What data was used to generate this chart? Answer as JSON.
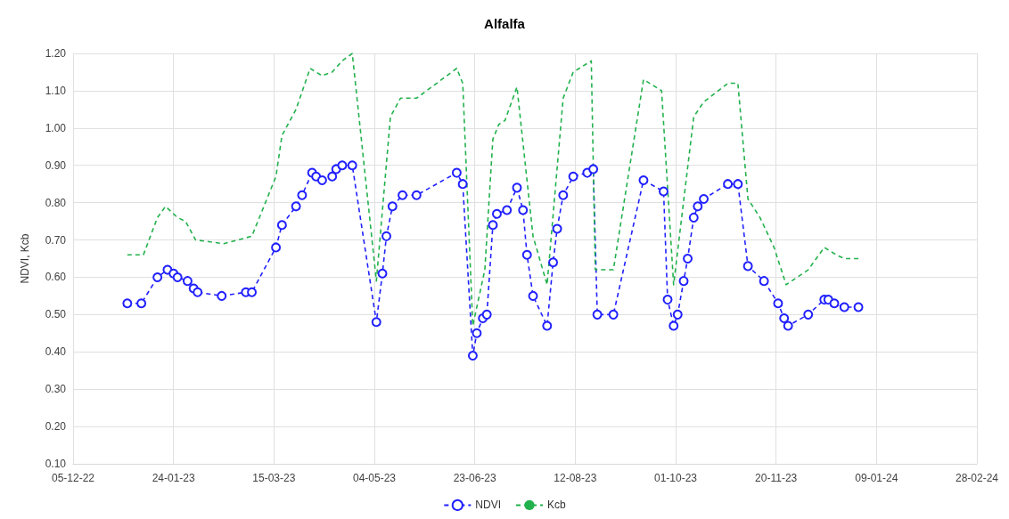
{
  "chart_data": {
    "type": "line",
    "title": "Alfalfa",
    "ylabel": "NDVI, Kcb",
    "xlim": [
      "2022-12-05",
      "2024-02-28"
    ],
    "xticks": [
      {
        "value": "2022-12-05",
        "label": "05-12-22"
      },
      {
        "value": "2023-01-24",
        "label": "24-01-23"
      },
      {
        "value": "2023-03-15",
        "label": "15-03-23"
      },
      {
        "value": "2023-05-04",
        "label": "04-05-23"
      },
      {
        "value": "2023-06-23",
        "label": "23-06-23"
      },
      {
        "value": "2023-08-12",
        "label": "12-08-23"
      },
      {
        "value": "2023-10-01",
        "label": "01-10-23"
      },
      {
        "value": "2023-11-20",
        "label": "20-11-23"
      },
      {
        "value": "2024-01-09",
        "label": "09-01-24"
      },
      {
        "value": "2024-02-28",
        "label": "28-02-24"
      }
    ],
    "ylim": [
      0.1,
      1.2
    ],
    "yticks": [
      {
        "value": 0.1,
        "label": "0.10"
      },
      {
        "value": 0.2,
        "label": "0.20"
      },
      {
        "value": 0.3,
        "label": "0.30"
      },
      {
        "value": 0.4,
        "label": "0.40"
      },
      {
        "value": 0.5,
        "label": "0.50"
      },
      {
        "value": 0.6,
        "label": "0.60"
      },
      {
        "value": 0.7,
        "label": "0.70"
      },
      {
        "value": 0.8,
        "label": "0.80"
      },
      {
        "value": 0.9,
        "label": "0.90"
      },
      {
        "value": 1.0,
        "label": "1.00"
      },
      {
        "value": 1.1,
        "label": "1.10"
      },
      {
        "value": 1.2,
        "label": "1.20"
      }
    ],
    "grid": true,
    "legend": "bottom",
    "line_style": "dashed",
    "series": [
      {
        "name": "NDVI",
        "color": "#2020ff",
        "marker": "circle",
        "x": [
          "2023-01-01",
          "2023-01-08",
          "2023-01-16",
          "2023-01-21",
          "2023-01-24",
          "2023-01-26",
          "2023-01-31",
          "2023-02-03",
          "2023-02-05",
          "2023-02-17",
          "2023-03-01",
          "2023-03-04",
          "2023-03-16",
          "2023-03-19",
          "2023-03-26",
          "2023-03-29",
          "2023-04-03",
          "2023-04-05",
          "2023-04-08",
          "2023-04-13",
          "2023-04-15",
          "2023-04-18",
          "2023-04-23",
          "2023-05-05",
          "2023-05-08",
          "2023-05-10",
          "2023-05-13",
          "2023-05-18",
          "2023-05-25",
          "2023-06-14",
          "2023-06-17",
          "2023-06-22",
          "2023-06-24",
          "2023-06-27",
          "2023-06-29",
          "2023-07-02",
          "2023-07-04",
          "2023-07-09",
          "2023-07-14",
          "2023-07-17",
          "2023-07-19",
          "2023-07-22",
          "2023-07-29",
          "2023-08-01",
          "2023-08-03",
          "2023-08-06",
          "2023-08-11",
          "2023-08-18",
          "2023-08-21",
          "2023-08-23",
          "2023-08-31",
          "2023-09-15",
          "2023-09-25",
          "2023-09-27",
          "2023-09-30",
          "2023-10-02",
          "2023-10-05",
          "2023-10-07",
          "2023-10-10",
          "2023-10-12",
          "2023-10-15",
          "2023-10-27",
          "2023-11-01",
          "2023-11-06",
          "2023-11-14",
          "2023-11-21",
          "2023-11-24",
          "2023-11-26",
          "2023-12-06",
          "2023-12-14",
          "2023-12-16",
          "2023-12-19",
          "2023-12-24",
          "2023-12-31"
        ],
        "values": [
          0.53,
          0.53,
          0.6,
          0.62,
          0.61,
          0.6,
          0.59,
          0.57,
          0.56,
          0.55,
          0.56,
          0.56,
          0.68,
          0.74,
          0.79,
          0.82,
          0.88,
          0.87,
          0.86,
          0.87,
          0.89,
          0.9,
          0.9,
          0.48,
          0.61,
          0.71,
          0.79,
          0.82,
          0.82,
          0.88,
          0.85,
          0.39,
          0.45,
          0.49,
          0.5,
          0.74,
          0.77,
          0.78,
          0.84,
          0.78,
          0.66,
          0.55,
          0.47,
          0.64,
          0.73,
          0.82,
          0.87,
          0.88,
          0.89,
          0.5,
          0.5,
          0.86,
          0.83,
          0.54,
          0.47,
          0.5,
          0.59,
          0.65,
          0.76,
          0.79,
          0.81,
          0.85,
          0.85,
          0.63,
          0.59,
          0.53,
          0.49,
          0.47,
          0.5,
          0.54,
          0.54,
          0.53,
          0.52,
          0.52
        ]
      },
      {
        "name": "Kcb",
        "color": "#22b14c",
        "marker": "none",
        "x": [
          "2023-01-01",
          "2023-01-09",
          "2023-01-16",
          "2023-01-20",
          "2023-01-26",
          "2023-01-30",
          "2023-02-04",
          "2023-02-18",
          "2023-03-04",
          "2023-03-16",
          "2023-03-19",
          "2023-03-26",
          "2023-04-02",
          "2023-04-08",
          "2023-04-13",
          "2023-04-18",
          "2023-04-23",
          "2023-05-05",
          "2023-05-12",
          "2023-05-17",
          "2023-05-25",
          "2023-06-14",
          "2023-06-17",
          "2023-06-22",
          "2023-06-28",
          "2023-07-02",
          "2023-07-05",
          "2023-07-08",
          "2023-07-14",
          "2023-07-22",
          "2023-07-29",
          "2023-08-06",
          "2023-08-11",
          "2023-08-20",
          "2023-08-22",
          "2023-08-31",
          "2023-09-15",
          "2023-09-24",
          "2023-09-30",
          "2023-10-10",
          "2023-10-15",
          "2023-10-27",
          "2023-11-01",
          "2023-11-06",
          "2023-11-12",
          "2023-11-19",
          "2023-11-25",
          "2023-12-06",
          "2023-12-14",
          "2023-12-20",
          "2023-12-24",
          "2023-12-31"
        ],
        "values": [
          0.66,
          0.66,
          0.76,
          0.79,
          0.76,
          0.75,
          0.7,
          0.69,
          0.71,
          0.87,
          0.98,
          1.05,
          1.16,
          1.14,
          1.15,
          1.18,
          1.2,
          0.59,
          1.03,
          1.08,
          1.08,
          1.16,
          1.12,
          0.47,
          0.62,
          0.97,
          1.01,
          1.02,
          1.11,
          0.71,
          0.58,
          1.08,
          1.15,
          1.18,
          0.62,
          0.62,
          1.13,
          1.1,
          0.58,
          1.03,
          1.07,
          1.12,
          1.12,
          0.81,
          0.76,
          0.68,
          0.58,
          0.62,
          0.68,
          0.66,
          0.65,
          0.65
        ]
      }
    ]
  }
}
